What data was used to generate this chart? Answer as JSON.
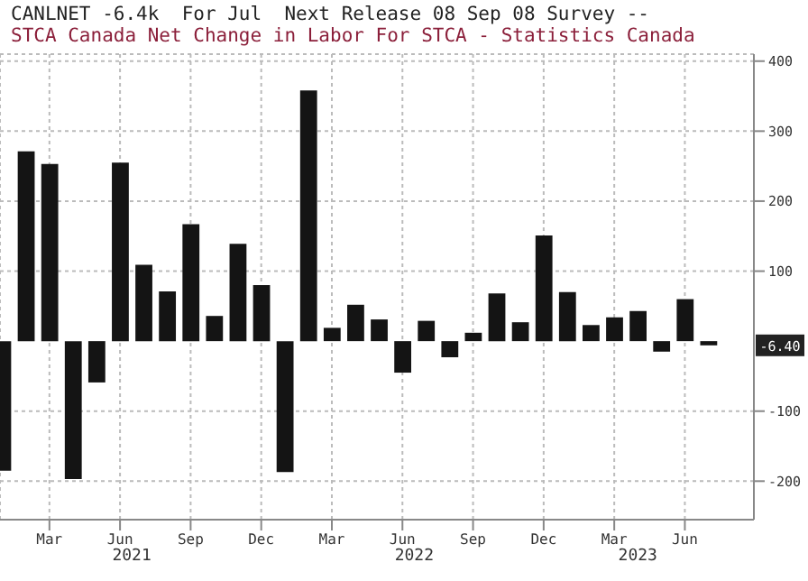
{
  "chart_data": {
    "type": "bar",
    "title": "CANLNET -6.4k  For Jul  Next Release 08 Sep 08 Survey --",
    "subtitle": "STCA Canada Net Change in Labor For STCA - Statistics Canada",
    "x": [
      "2021-01",
      "2021-02",
      "2021-03",
      "2021-04",
      "2021-05",
      "2021-06",
      "2021-07",
      "2021-08",
      "2021-09",
      "2021-10",
      "2021-11",
      "2021-12",
      "2022-01",
      "2022-02",
      "2022-03",
      "2022-04",
      "2022-05",
      "2022-06",
      "2022-07",
      "2022-08",
      "2022-09",
      "2022-10",
      "2022-11",
      "2022-12",
      "2023-01",
      "2023-02",
      "2023-03",
      "2023-04",
      "2023-05",
      "2023-06",
      "2023-07"
    ],
    "values": [
      -185,
      271,
      253,
      -197,
      -59,
      255,
      109,
      71,
      167,
      36,
      139,
      80,
      -187,
      358,
      19,
      52,
      31,
      -45,
      29,
      -23,
      12,
      68,
      27,
      151,
      70,
      23,
      34,
      43,
      -15,
      60,
      -6
    ],
    "color": "#141414",
    "xlim": [
      "2020-12-28",
      "2023-08-29"
    ],
    "xticks": [
      {
        "value": "2021-03",
        "label": "Mar"
      },
      {
        "value": "2021-06",
        "label": "Jun"
      },
      {
        "value": "2021-09",
        "label": "Sep"
      },
      {
        "value": "2021-12",
        "label": "Dec"
      },
      {
        "value": "2022-03",
        "label": "Mar"
      },
      {
        "value": "2022-06",
        "label": "Jun"
      },
      {
        "value": "2022-09",
        "label": "Sep"
      },
      {
        "value": "2022-12",
        "label": "Dec"
      },
      {
        "value": "2023-03",
        "label": "Mar"
      },
      {
        "value": "2023-06",
        "label": "Jun"
      }
    ],
    "ylim": [
      -255,
      410
    ],
    "yticks": [
      400,
      300,
      200,
      100,
      -100,
      -200
    ],
    "grid": true,
    "annotations": [
      "2021",
      "2022",
      "2023",
      "-6.40"
    ]
  }
}
